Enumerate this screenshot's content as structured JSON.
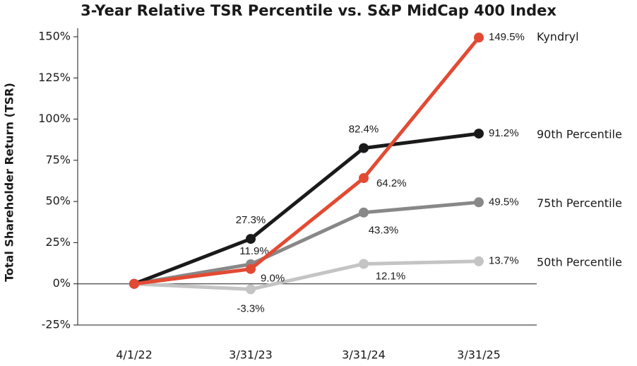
{
  "chart_data": {
    "type": "line",
    "title": "3-Year Relative TSR Percentile vs. S&P MidCap 400 Index",
    "y_label": "Total Shareholder Return (TSR)",
    "categories": [
      "4/1/22",
      "3/31/23",
      "3/31/24",
      "3/31/25"
    ],
    "ylim": [
      -25,
      150
    ],
    "yticks": [
      {
        "value": -25,
        "label": "-25%"
      },
      {
        "value": 0,
        "label": "0%"
      },
      {
        "value": 25,
        "label": "25%"
      },
      {
        "value": 50,
        "label": "50%"
      },
      {
        "value": 75,
        "label": "75%"
      },
      {
        "value": 100,
        "label": "100%"
      },
      {
        "value": 125,
        "label": "125%"
      },
      {
        "value": 150,
        "label": "150%"
      }
    ],
    "series": [
      {
        "name": "50th Percentile",
        "color": "#c4c4c4",
        "values": [
          0,
          -3.3,
          12.1,
          13.7
        ],
        "value_labels": [
          null,
          "-3.3%",
          "12.1%",
          "13.7%"
        ]
      },
      {
        "name": "75th Percentile",
        "color": "#888888",
        "values": [
          0,
          11.9,
          43.3,
          49.5
        ],
        "value_labels": [
          null,
          "11.9%",
          "43.3%",
          "49.5%"
        ]
      },
      {
        "name": "90th Percentile",
        "color": "#1a1a1a",
        "values": [
          0,
          27.3,
          82.4,
          91.2
        ],
        "value_labels": [
          null,
          "27.3%",
          "82.4%",
          "91.2%"
        ]
      },
      {
        "name": "Kyndryl",
        "color": "#e34a33",
        "values": [
          0,
          9.0,
          64.2,
          149.5
        ],
        "value_labels": [
          null,
          "9.0%",
          "64.2%",
          "149.5%"
        ]
      }
    ]
  }
}
